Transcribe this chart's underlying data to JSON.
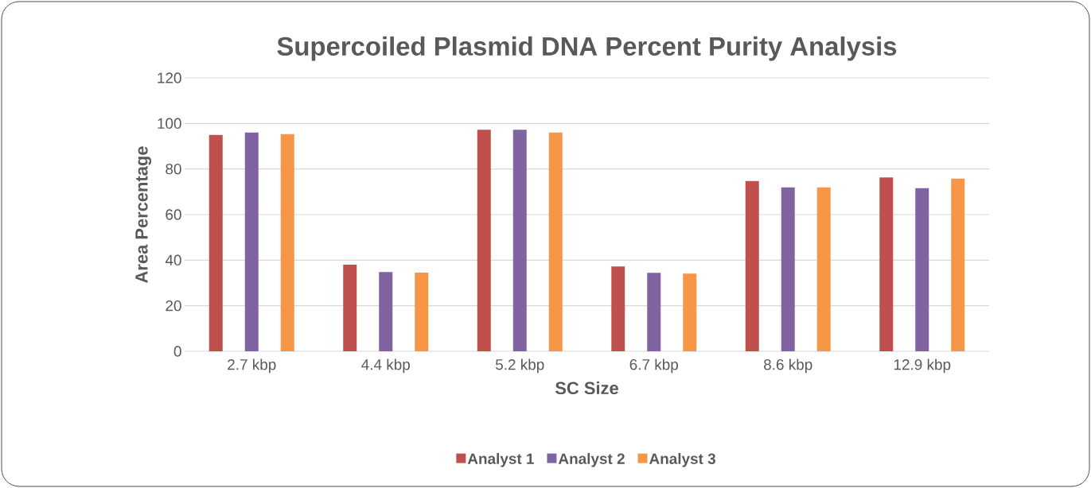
{
  "chart_data": {
    "type": "bar",
    "title": "Supercoiled Plasmid DNA Percent Purity Analysis",
    "xlabel": "SC Size",
    "ylabel": "Area Percentage",
    "categories": [
      "2.7 kbp",
      "4.4 kbp",
      "5.2 kbp",
      "6.7 kbp",
      "8.6 kbp",
      "12.9 kbp"
    ],
    "series": [
      {
        "name": "Analyst 1",
        "color": "#c0504d",
        "values": [
          95.0,
          38.0,
          97.2,
          37.2,
          74.7,
          76.3
        ]
      },
      {
        "name": "Analyst 2",
        "color": "#8064a2",
        "values": [
          96.0,
          34.8,
          97.2,
          34.4,
          71.9,
          71.6
        ]
      },
      {
        "name": "Analyst 3",
        "color": "#f79646",
        "values": [
          95.3,
          34.5,
          96.0,
          34.1,
          71.9,
          75.8
        ]
      }
    ],
    "ylim": [
      0,
      120
    ],
    "yticks": [
      0,
      20,
      40,
      60,
      80,
      100,
      120
    ],
    "grid": "y",
    "legend": "bottom"
  }
}
